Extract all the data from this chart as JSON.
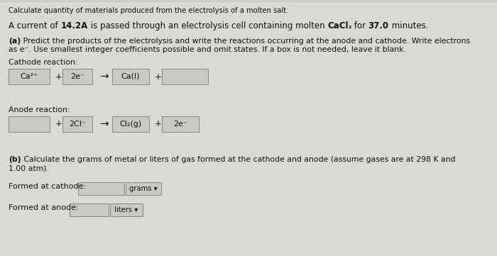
{
  "title_line": "Calculate quantity of materials produced from the electrolysis of a molten salt.",
  "cathode_label": "Cathode reaction:",
  "cathode_box1": "Ca²⁺",
  "cathode_plus1": "+",
  "cathode_box2": "2e⁻",
  "cathode_arrow": "→",
  "cathode_box3": "Ca(l)",
  "cathode_plus2": "+",
  "cathode_box4": "",
  "anode_label": "Anode reaction:",
  "anode_box1": "",
  "anode_plus1": "+",
  "anode_box2": "2Cl⁻",
  "anode_arrow": "→",
  "anode_box3": "Cl₂(g)",
  "anode_plus2": "+",
  "anode_box4": "2e⁻",
  "part_b_bold": "(b)",
  "part_b_rest": " Calculate the grams of metal or liters of gas formed at the cathode and anode (assume gases are at 298 K and",
  "part_b_line2": "1.00 atm).",
  "cathode_formed_label": "Formed at cathode:",
  "cathode_unit": "grams ▾",
  "anode_formed_label": "Formed at anode:",
  "anode_unit": "liters ▾",
  "bg_color": "#dbd9d3",
  "box_fill": "#cbc9c3",
  "box_edge": "#888880",
  "text_color": "#111111",
  "intro_segments": [
    [
      "A current of ",
      "normal"
    ],
    [
      "14.2A",
      "bold"
    ],
    [
      " is passed through an electrolysis cell containing molten ",
      "normal"
    ],
    [
      "CaCl",
      "bold"
    ],
    [
      "₂",
      "bold_sub"
    ],
    [
      " for ",
      "normal"
    ],
    [
      "37.0",
      "bold"
    ],
    [
      " minutes.",
      "normal"
    ]
  ],
  "part_a_bold": "(a)",
  "part_a_rest": " Predict the products of the electrolysis and write the reactions occurring at the anode and cathode. Write electrons",
  "part_a_line2": "as e⁻. Use smallest integer coefficients possible and omit states. If a box is not needed, leave it blank."
}
